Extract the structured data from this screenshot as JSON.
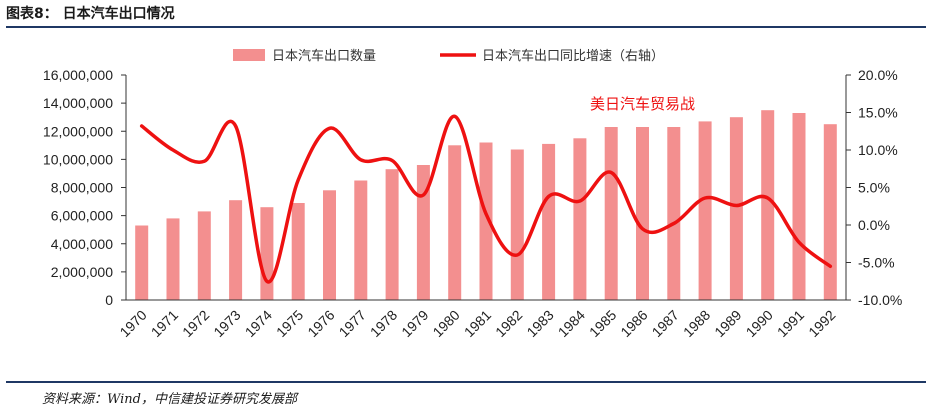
{
  "figure": {
    "title": "图表8：  日本汽车出口情况",
    "source": "资料来源：Wind，中信建投证券研究发展部"
  },
  "colors": {
    "bar": "#f38f8f",
    "line": "#ee1111",
    "axis": "#333333",
    "title_rule": "#1f3864"
  },
  "chart_data": {
    "type": "bar+line",
    "categories": [
      "1970",
      "1971",
      "1972",
      "1973",
      "1974",
      "1975",
      "1976",
      "1977",
      "1978",
      "1979",
      "1980",
      "1981",
      "1982",
      "1983",
      "1984",
      "1985",
      "1986",
      "1987",
      "1988",
      "1989",
      "1990",
      "1991",
      "1992"
    ],
    "series": [
      {
        "name": "日本汽车出口数量",
        "type": "bar",
        "axis": "left",
        "values": [
          5300000,
          5800000,
          6300000,
          7100000,
          6600000,
          6900000,
          7800000,
          8500000,
          9300000,
          9600000,
          11000000,
          11200000,
          10700000,
          11100000,
          11500000,
          12300000,
          12300000,
          12300000,
          12700000,
          13000000,
          13500000,
          13300000,
          12500000
        ]
      },
      {
        "name": "日本汽车出口同比增速（右轴）",
        "type": "line",
        "axis": "right",
        "values": [
          13.2,
          10.0,
          8.5,
          13.2,
          -7.5,
          6.0,
          12.9,
          8.7,
          8.6,
          4.0,
          14.5,
          1.5,
          -4.0,
          3.8,
          3.2,
          7.0,
          -0.5,
          0.2,
          3.6,
          2.6,
          3.6,
          -2.3,
          -5.5
        ]
      }
    ],
    "y_left": {
      "min": 0,
      "max": 16000000,
      "ticks": [
        "0",
        "2,000,000",
        "4,000,000",
        "6,000,000",
        "8,000,000",
        "10,000,000",
        "12,000,000",
        "14,000,000",
        "16,000,000"
      ]
    },
    "y_right": {
      "min": -10,
      "max": 20,
      "ticks": [
        "-10.0%",
        "-5.0%",
        "0.0%",
        "5.0%",
        "10.0%",
        "15.0%",
        "20.0%"
      ]
    },
    "legend_position": "top",
    "grid": false,
    "annotation": {
      "text": "美日汽车贸易战",
      "at_category": "1986",
      "at_value": 15.5,
      "color": "#ee1111"
    }
  }
}
